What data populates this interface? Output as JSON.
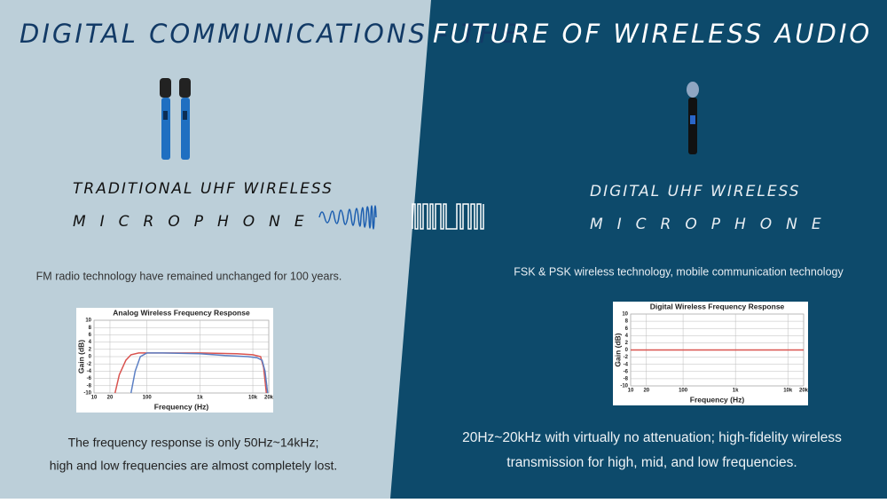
{
  "title_left": "DIGITAL COMMUNICATIONS - THE",
  "title_right": "FUTURE OF WIRELESS AUDIO",
  "left": {
    "heading": "TRADITIONAL UHF WIRELESS",
    "heading2": "MICROPHONE",
    "description": "FM radio technology have remained unchanged for 100 years.",
    "chart": {
      "type": "line",
      "title": "Analog Wireless Frequency Response",
      "x_label": "Frequency (Hz)",
      "y_label": "Gain (dB)",
      "log_x": true,
      "xlim": [
        10,
        20000
      ],
      "ylim": [
        -10,
        10
      ],
      "xticks": [
        10,
        20,
        100,
        {
          "value": 1000,
          "label": "1k"
        },
        {
          "value": 10000,
          "label": "10k"
        },
        {
          "value": 20000,
          "label": "20k"
        }
      ],
      "yticks": [
        10,
        8,
        6,
        4,
        2,
        0,
        -2,
        -4,
        -6,
        -8,
        -10
      ],
      "series": [
        {
          "color": "#d9534f",
          "x": [
            25,
            30,
            40,
            50,
            70,
            100,
            1000,
            5000,
            10000,
            14000,
            16000,
            18000
          ],
          "values": [
            -10,
            -5,
            -1,
            0.5,
            1,
            1,
            1,
            0.8,
            0.5,
            0,
            -3,
            -10
          ]
        },
        {
          "color": "#5b7fc4",
          "x": [
            50,
            60,
            75,
            100,
            200,
            1000,
            3000,
            8000,
            12000,
            15000,
            17000,
            19000
          ],
          "values": [
            -10,
            -4,
            0,
            1,
            1,
            0.8,
            0.3,
            0,
            -0.3,
            -1,
            -4,
            -10
          ]
        }
      ]
    },
    "caption": [
      "The frequency response is only 50Hz~14kHz;",
      "high and low frequencies are almost completely lost."
    ]
  },
  "right": {
    "heading": "DIGITAL UHF WIRELESS",
    "heading2": "MICROPHONE",
    "description": "FSK & PSK wireless technology, mobile communication technology",
    "chart": {
      "type": "line",
      "title": "Digital Wireless Frequency Response",
      "x_label": "Frequency (Hz)",
      "y_label": "Gain (dB)",
      "log_x": true,
      "xlim": [
        10,
        20000
      ],
      "ylim": [
        -10,
        10
      ],
      "xticks": [
        10,
        20,
        100,
        {
          "value": 1000,
          "label": "1k"
        },
        {
          "value": 10000,
          "label": "10k"
        },
        {
          "value": 20000,
          "label": "20k"
        }
      ],
      "yticks": [
        10,
        8,
        6,
        4,
        2,
        0,
        -2,
        -4,
        -6,
        -8,
        -10
      ],
      "series": [
        {
          "color": "#d9534f",
          "x": [
            10,
            100,
            1000,
            10000,
            20000
          ],
          "values": [
            0,
            0,
            0,
            0,
            0
          ]
        }
      ]
    },
    "caption": [
      "20Hz~20kHz with virtually no attenuation; high-fidelity wireless",
      "transmission for high, mid, and low frequencies."
    ]
  }
}
